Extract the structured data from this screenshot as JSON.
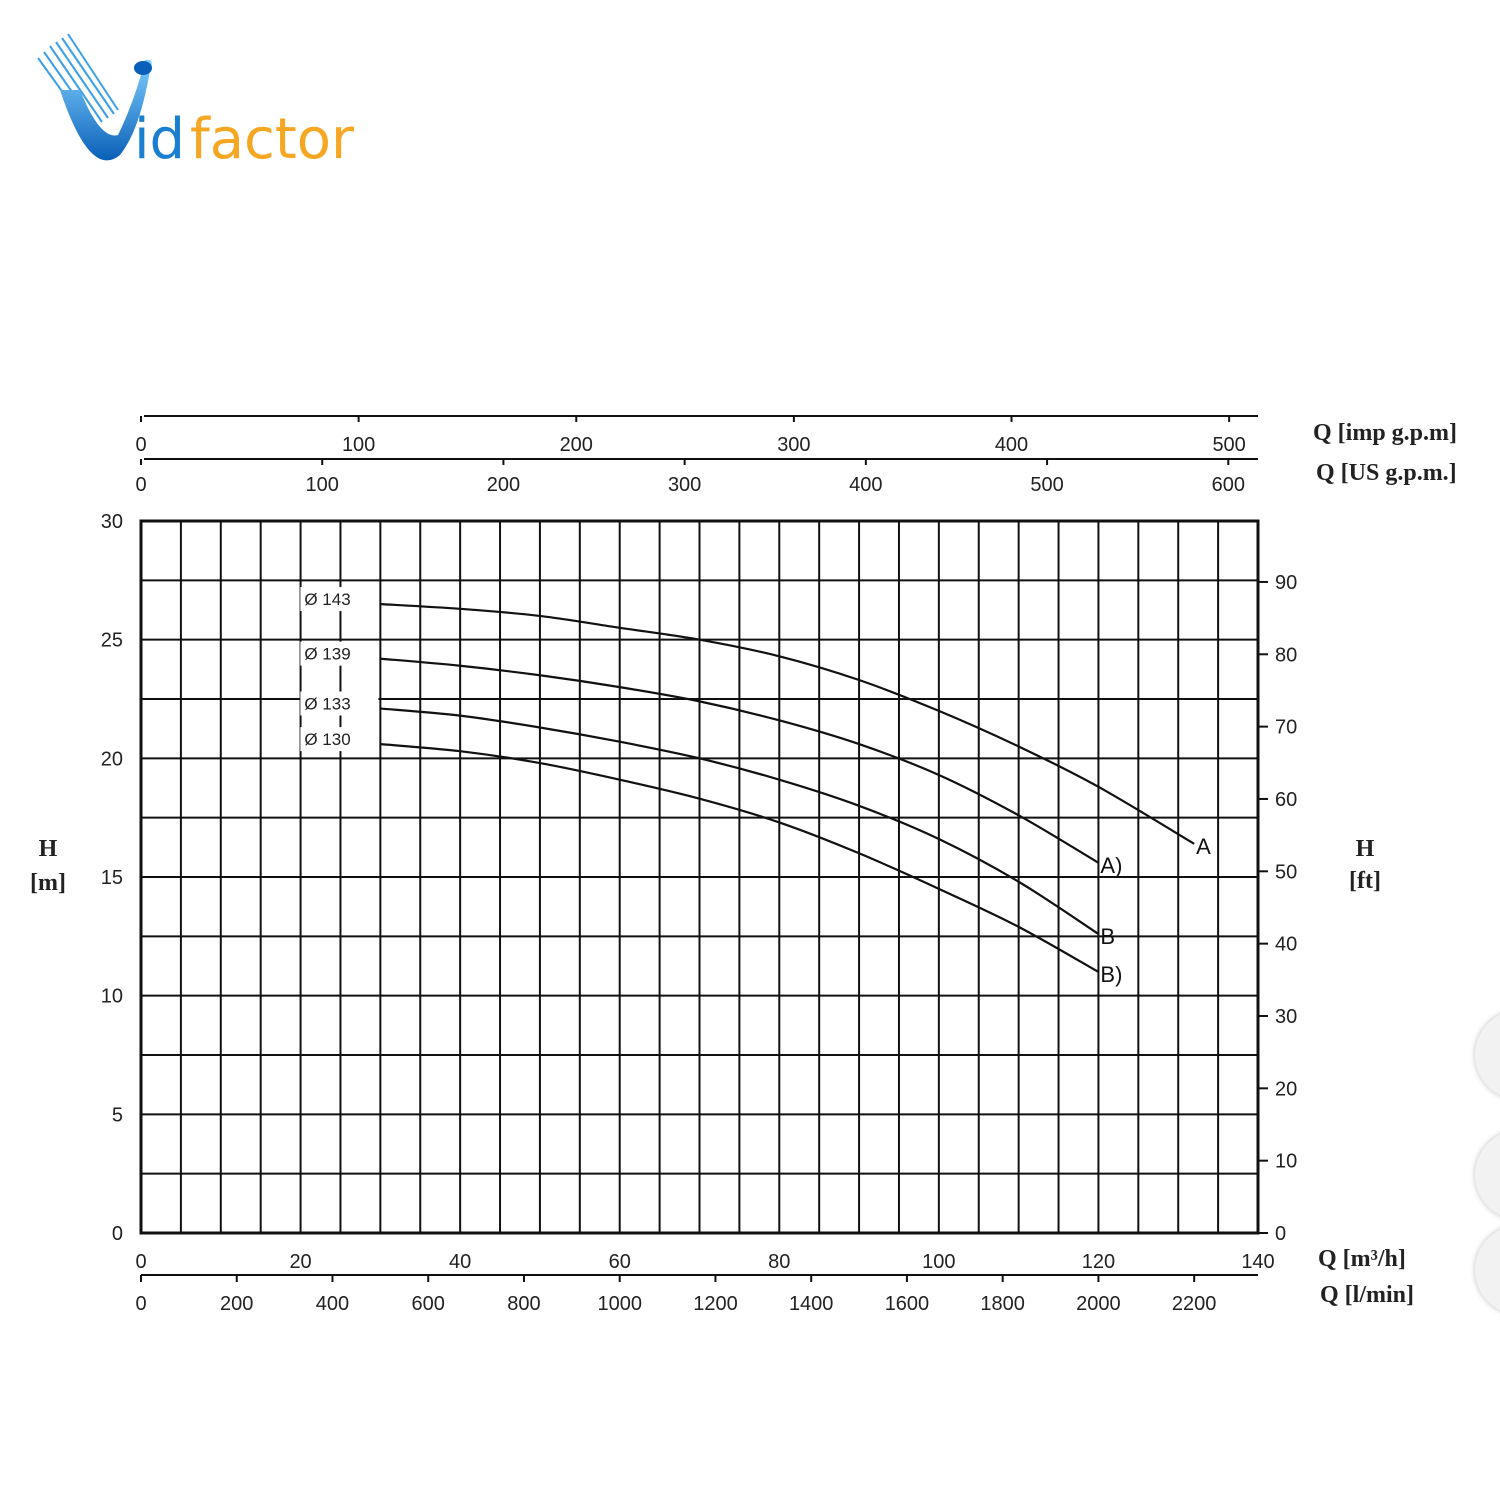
{
  "logo": {
    "text_prefix": "idfactor",
    "colors": {
      "blue": "#1a7fd1",
      "orange": "#f5a623"
    }
  },
  "chart_data": {
    "type": "line",
    "title": "",
    "xlabel": "Q [m³/h]",
    "ylabel": "H [m]",
    "xlim": [
      0,
      140
    ],
    "ylim": [
      0,
      30
    ],
    "grid": true,
    "x_ticks": [
      0,
      20,
      40,
      60,
      80,
      100,
      120,
      140
    ],
    "y_ticks": [
      0,
      5,
      10,
      15,
      20,
      25,
      30
    ],
    "secondary_axes": {
      "top_imp": {
        "label": "Q [imp g.p.m]",
        "ticks": [
          0,
          100,
          200,
          300,
          400,
          500
        ]
      },
      "top_us": {
        "label": "Q [US g.p.m.]",
        "ticks": [
          0,
          100,
          200,
          300,
          400,
          500,
          600
        ]
      },
      "bottom_lmin": {
        "label": "Q [l/min]",
        "ticks": [
          0,
          200,
          400,
          600,
          800,
          1000,
          1200,
          1400,
          1600,
          1800,
          2000,
          2200
        ]
      },
      "right_ft": {
        "label": "H [ft]",
        "ticks": [
          0,
          10,
          20,
          30,
          40,
          50,
          60,
          70,
          80,
          90
        ]
      }
    },
    "left_label": {
      "line1": "H",
      "line2": "[m]"
    },
    "right_label": {
      "line1": "H",
      "line2": "[ft]"
    },
    "series": [
      {
        "name": "Ø 143",
        "end_label": "A",
        "end_color": "#111111",
        "x": [
          30,
          40,
          50,
          60,
          70,
          80,
          90,
          100,
          110,
          120,
          132
        ],
        "y": [
          26.5,
          26.3,
          26.0,
          25.5,
          25.0,
          24.3,
          23.3,
          22.0,
          20.5,
          18.8,
          16.4
        ]
      },
      {
        "name": "Ø 139",
        "end_label": "A)",
        "end_color": "#111111",
        "x": [
          30,
          40,
          50,
          60,
          70,
          80,
          90,
          100,
          110,
          120
        ],
        "y": [
          24.2,
          23.9,
          23.5,
          23.0,
          22.4,
          21.6,
          20.6,
          19.3,
          17.6,
          15.6
        ]
      },
      {
        "name": "Ø 133",
        "end_label": "B",
        "end_color": "#e02020",
        "x": [
          30,
          40,
          50,
          60,
          70,
          80,
          90,
          100,
          110,
          120
        ],
        "y": [
          22.1,
          21.8,
          21.3,
          20.7,
          20.0,
          19.1,
          18.0,
          16.6,
          14.8,
          12.6
        ]
      },
      {
        "name": "Ø 130",
        "end_label": "B)",
        "end_color": "#111111",
        "x": [
          30,
          40,
          50,
          60,
          70,
          80,
          90,
          100,
          110,
          120
        ],
        "y": [
          20.6,
          20.3,
          19.8,
          19.1,
          18.3,
          17.3,
          16.0,
          14.5,
          12.9,
          11.0
        ]
      }
    ]
  }
}
